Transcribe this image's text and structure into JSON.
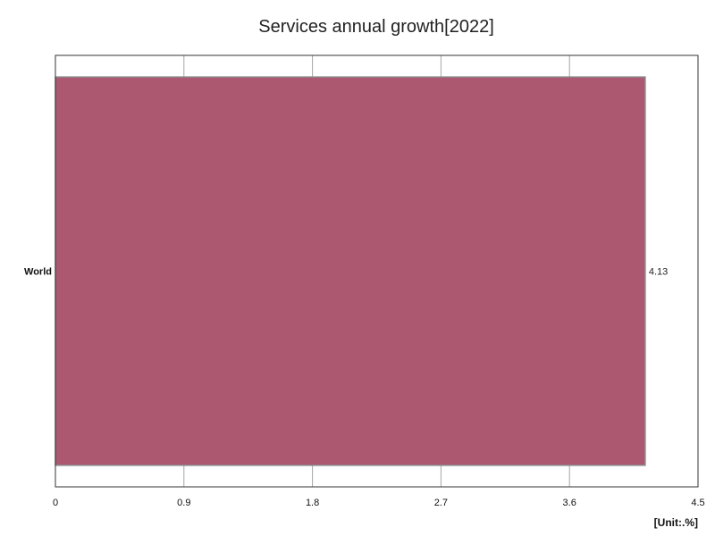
{
  "chart_data": {
    "type": "bar",
    "orientation": "horizontal",
    "title": "Services annual growth[2022]",
    "categories": [
      "World"
    ],
    "series": [
      {
        "values": [
          4.13
        ],
        "data_labels": [
          "4.13"
        ]
      }
    ],
    "xlim": [
      0,
      4.5
    ],
    "x_ticks": [
      0,
      0.9,
      1.8,
      2.7,
      3.6,
      4.5
    ],
    "x_tick_labels": [
      "0",
      "0.9",
      "1.8",
      "2.7",
      "3.6",
      "4.5"
    ],
    "unit_label": "[Unit:.%]",
    "grid": true,
    "legend": "none",
    "colors": {
      "bar": "#ac5870",
      "bar_edge": "#8a8a8a",
      "grid": "#a6a6a6",
      "frame": "#333333"
    }
  }
}
